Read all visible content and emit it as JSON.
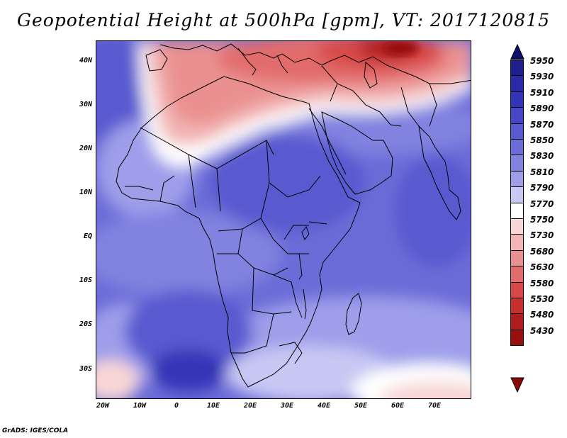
{
  "title": "Geopotential Height at 500hPa [gpm], VT: 2017120815",
  "credit": "GrADS: IGES/COLA",
  "lat_labels": [
    "40N",
    "30N",
    "20N",
    "10N",
    "EQ",
    "10S",
    "20S",
    "30S"
  ],
  "lon_labels": [
    "20W",
    "10W",
    "0",
    "10E",
    "20E",
    "30E",
    "40E",
    "50E",
    "60E",
    "70E"
  ],
  "colorbar": {
    "levels": [
      "5950",
      "5930",
      "5910",
      "5890",
      "5870",
      "5850",
      "5830",
      "5810",
      "5790",
      "5770",
      "5750",
      "5730",
      "5680",
      "5630",
      "5580",
      "5530",
      "5480",
      "5430"
    ],
    "colors": [
      "#1f1f8c",
      "#2a2aa8",
      "#3434b8",
      "#4646c6",
      "#5a5ad0",
      "#6c6cd8",
      "#8282e0",
      "#9e9eea",
      "#c8c8f4",
      "#ffffff",
      "#f8d6d6",
      "#f2b4b4",
      "#ea9090",
      "#e26c6c",
      "#d84848",
      "#c83030",
      "#b01c1c",
      "#9a0e0e"
    ],
    "top_arrow_color": "#10106e",
    "bottom_arrow_color": "#8a0808"
  }
}
